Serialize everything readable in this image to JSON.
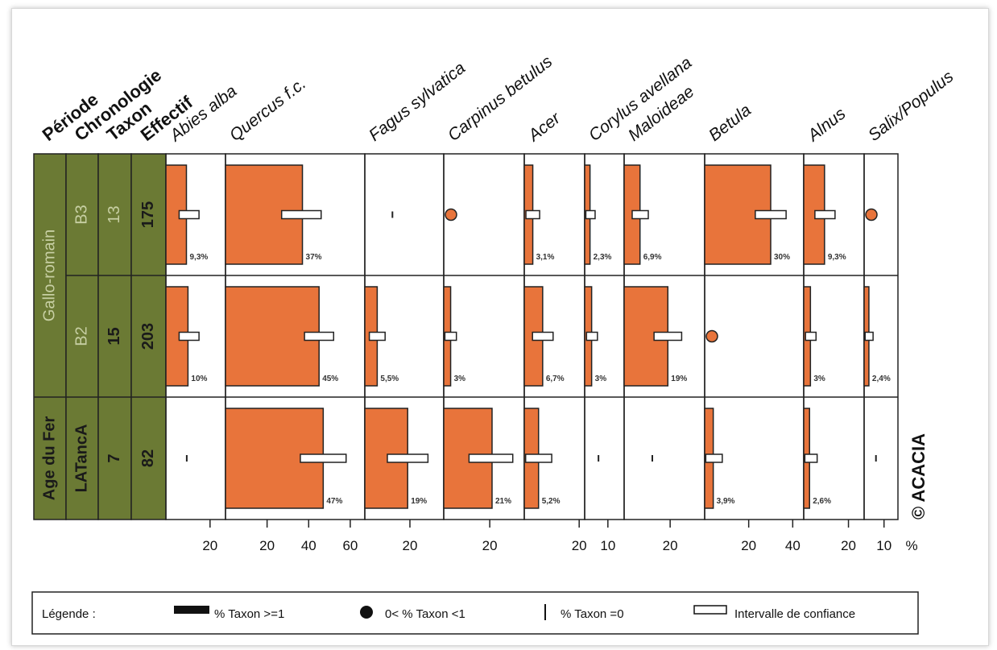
{
  "chart_data": {
    "type": "bar",
    "header": {
      "periode": "Période",
      "chronologie": "Chronologie",
      "taxon": "Taxon",
      "effectif": "Effectif"
    },
    "taxa": [
      {
        "name": "Abies alba",
        "ticks": [
          20
        ],
        "tick_labels": [
          "20"
        ],
        "max": 27
      },
      {
        "name": "Quercus f.c.",
        "ticks": [
          20,
          40,
          60
        ],
        "tick_labels": [
          "20",
          "40",
          "60"
        ],
        "max": 67
      },
      {
        "name": "Fagus sylvatica",
        "ticks": [
          20
        ],
        "tick_labels": [
          "20"
        ],
        "max": 35
      },
      {
        "name": "Carpinus betulus",
        "ticks": [
          20
        ],
        "tick_labels": [
          "20"
        ],
        "max": 35
      },
      {
        "name": "Acer",
        "ticks": [
          20
        ],
        "tick_labels": [
          "20"
        ],
        "max": 22
      },
      {
        "name": "Corylus avellana",
        "ticks": [
          10
        ],
        "tick_labels": [
          "10"
        ],
        "max": 17
      },
      {
        "name": "Maloideae",
        "ticks": [
          20
        ],
        "tick_labels": [
          "20"
        ],
        "max": 35
      },
      {
        "name": "Betula",
        "ticks": [
          20,
          40
        ],
        "tick_labels": [
          "20",
          "40"
        ],
        "max": 45
      },
      {
        "name": "Alnus",
        "ticks": [
          20
        ],
        "tick_labels": [
          "20"
        ],
        "max": 27
      },
      {
        "name": "Salix/Populus",
        "ticks": [
          10
        ],
        "tick_labels": [
          "10"
        ],
        "max": 17
      }
    ],
    "unit_label": "%",
    "rows": [
      {
        "periode": "Gallo-romain",
        "chronologie": "B3",
        "taxon": "13",
        "effectif": "175",
        "values": [
          9.3,
          37,
          0,
          0.5,
          3.1,
          2.3,
          6.9,
          30,
          9.3,
          0.5
        ],
        "kinds": [
          "bar",
          "bar",
          "zero",
          "dot",
          "bar",
          "bar",
          "bar",
          "bar",
          "bar",
          "dot"
        ],
        "labels": [
          "9,3%",
          "37%",
          "",
          "",
          "3,1%",
          "2,3%",
          "6,9%",
          "30%",
          "9,3%",
          ""
        ],
        "ci": [
          [
            6,
            15
          ],
          [
            27,
            46
          ],
          null,
          null,
          [
            0.6,
            5.6
          ],
          [
            0.5,
            4.5
          ],
          [
            3.5,
            10.5
          ],
          [
            23,
            37
          ],
          [
            5,
            14
          ],
          null
        ]
      },
      {
        "periode": "Gallo-romain",
        "chronologie": "B2",
        "taxon": "15",
        "effectif": "203",
        "values": [
          10,
          45,
          5.5,
          3,
          6.7,
          3,
          19,
          0.5,
          3,
          2.4
        ],
        "kinds": [
          "bar",
          "bar",
          "bar",
          "bar",
          "bar",
          "bar",
          "bar",
          "dot",
          "bar",
          "bar"
        ],
        "labels": [
          "10%",
          "45%",
          "5,5%",
          "3%",
          "6,7%",
          "3%",
          "19%",
          "",
          "3%",
          "2,4%"
        ],
        "ci": [
          [
            6,
            15
          ],
          [
            38,
            52
          ],
          [
            2,
            9
          ],
          [
            0.5,
            5.5
          ],
          [
            3,
            10.5
          ],
          [
            0.8,
            5.5
          ],
          [
            13,
            25
          ],
          null,
          [
            0.8,
            5.5
          ],
          [
            0.5,
            4.5
          ]
        ]
      },
      {
        "periode": "Age du Fer",
        "chronologie": "LATancA",
        "taxon": "7",
        "effectif": "82",
        "values": [
          0,
          47,
          19,
          21,
          5.2,
          0,
          0,
          3.9,
          2.6,
          0
        ],
        "kinds": [
          "zero",
          "bar",
          "bar",
          "bar",
          "bar",
          "zero",
          "zero",
          "bar",
          "bar",
          "zero"
        ],
        "labels": [
          "",
          "47%",
          "19%",
          "21%",
          "5,2%",
          "",
          "",
          "3,9%",
          "2,6%",
          ""
        ],
        "ci": [
          null,
          [
            36,
            58
          ],
          [
            10,
            28
          ],
          [
            11,
            30
          ],
          [
            0.5,
            10
          ],
          null,
          null,
          [
            0.5,
            8
          ],
          [
            0.5,
            6
          ],
          null
        ]
      }
    ],
    "legend": {
      "title": "Légende :",
      "items": [
        "% Taxon >=1",
        "0< % Taxon <1",
        "% Taxon =0",
        "Intervalle de confiance"
      ]
    },
    "copyright": "© ACACIA",
    "colors": {
      "bar": "#e8743b",
      "period_fill": "#6b7a34",
      "period_text": "#c7cfa3",
      "row_text": "#1a1a1a"
    }
  }
}
